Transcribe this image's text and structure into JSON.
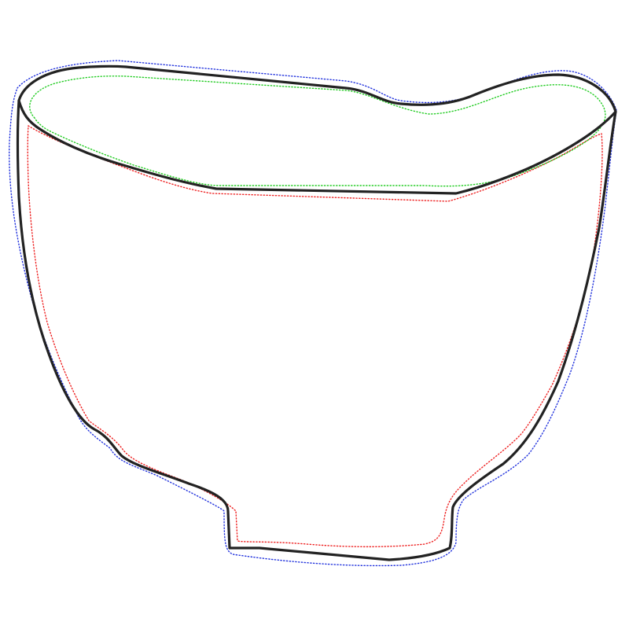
{
  "figure": {
    "subject": "bowl outline",
    "background_color": "#ffffff",
    "contours": [
      {
        "id": "outer-silhouette",
        "style": "dotted",
        "color": "#2233dd"
      },
      {
        "id": "inner-wall",
        "style": "dotted",
        "color": "#ee2222"
      },
      {
        "id": "rim-opening",
        "style": "dotted",
        "color": "#22cc22"
      },
      {
        "id": "bowl-body",
        "style": "solid",
        "color": "#222222"
      },
      {
        "id": "rim-ellipse",
        "style": "solid",
        "color": "#222222"
      }
    ]
  }
}
